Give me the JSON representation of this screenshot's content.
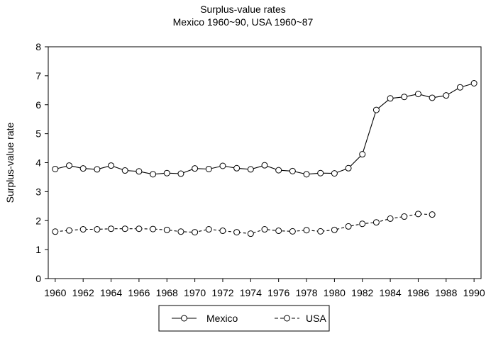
{
  "chart_data": {
    "type": "line",
    "title": "Surplus-value  rates",
    "subtitle": "Mexico 1960~90, USA 1960~87",
    "xlabel": "",
    "ylabel": "Surplus-value rate",
    "xlim": [
      1959.5,
      1990.5
    ],
    "ylim": [
      0,
      8
    ],
    "x_ticks": [
      1960,
      1962,
      1964,
      1966,
      1968,
      1970,
      1972,
      1974,
      1976,
      1978,
      1980,
      1982,
      1984,
      1986,
      1988,
      1990
    ],
    "y_ticks": [
      0,
      1,
      2,
      3,
      4,
      5,
      6,
      7,
      8
    ],
    "grid": false,
    "legend_position": "bottom",
    "series": [
      {
        "name": "Mexico",
        "line_style": "solid",
        "marker": "open-circle",
        "color": "#000000",
        "x": [
          1960,
          1961,
          1962,
          1963,
          1964,
          1965,
          1966,
          1967,
          1968,
          1969,
          1970,
          1971,
          1972,
          1973,
          1974,
          1975,
          1976,
          1977,
          1978,
          1979,
          1980,
          1981,
          1982,
          1983,
          1984,
          1985,
          1986,
          1987,
          1988,
          1989,
          1990
        ],
        "values": [
          3.78,
          3.9,
          3.8,
          3.77,
          3.9,
          3.73,
          3.7,
          3.6,
          3.64,
          3.62,
          3.8,
          3.78,
          3.89,
          3.81,
          3.77,
          3.91,
          3.74,
          3.71,
          3.6,
          3.64,
          3.63,
          3.81,
          4.29,
          5.82,
          6.22,
          6.27,
          6.37,
          6.24,
          6.32,
          6.6,
          6.74
        ]
      },
      {
        "name": "USA",
        "line_style": "dashed",
        "marker": "open-circle",
        "color": "#000000",
        "x": [
          1960,
          1961,
          1962,
          1963,
          1964,
          1965,
          1966,
          1967,
          1968,
          1969,
          1970,
          1971,
          1972,
          1973,
          1974,
          1975,
          1976,
          1977,
          1978,
          1979,
          1980,
          1981,
          1982,
          1983,
          1984,
          1985,
          1986,
          1987
        ],
        "values": [
          1.62,
          1.66,
          1.7,
          1.7,
          1.72,
          1.72,
          1.72,
          1.71,
          1.68,
          1.62,
          1.6,
          1.7,
          1.65,
          1.6,
          1.55,
          1.7,
          1.65,
          1.63,
          1.67,
          1.63,
          1.68,
          1.8,
          1.89,
          1.94,
          2.07,
          2.14,
          2.23,
          2.21
        ]
      }
    ]
  }
}
